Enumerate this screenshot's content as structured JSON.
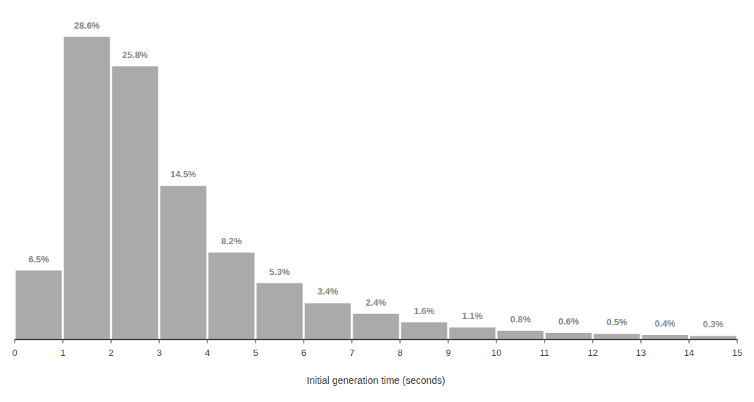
{
  "chart_data": {
    "type": "histogram",
    "x_label": "Initial generation time (seconds)",
    "bins": [
      0,
      1,
      2,
      3,
      4,
      5,
      6,
      7,
      8,
      9,
      10,
      11,
      12,
      13,
      14,
      15
    ],
    "values": [
      6.5,
      28.6,
      25.8,
      14.5,
      8.2,
      5.3,
      3.4,
      2.4,
      1.6,
      1.1,
      0.8,
      0.6,
      0.5,
      0.4,
      0.3
    ],
    "value_labels": [
      "6.5%",
      "28.6%",
      "25.8%",
      "14.5%",
      "8.2%",
      "5.3%",
      "3.4%",
      "2.4%",
      "1.6%",
      "1.1%",
      "0.8%",
      "0.6%",
      "0.5%",
      "0.4%",
      "0.3%"
    ],
    "color": "#aaaaaa",
    "xlim": [
      0,
      15
    ],
    "xticks": [
      0,
      1,
      2,
      3,
      4,
      5,
      6,
      7,
      8,
      9,
      10,
      11,
      12,
      13,
      14,
      15
    ],
    "ylim": [
      0,
      30
    ],
    "data_labels": true,
    "tick_labels": "x",
    "grid": false
  }
}
